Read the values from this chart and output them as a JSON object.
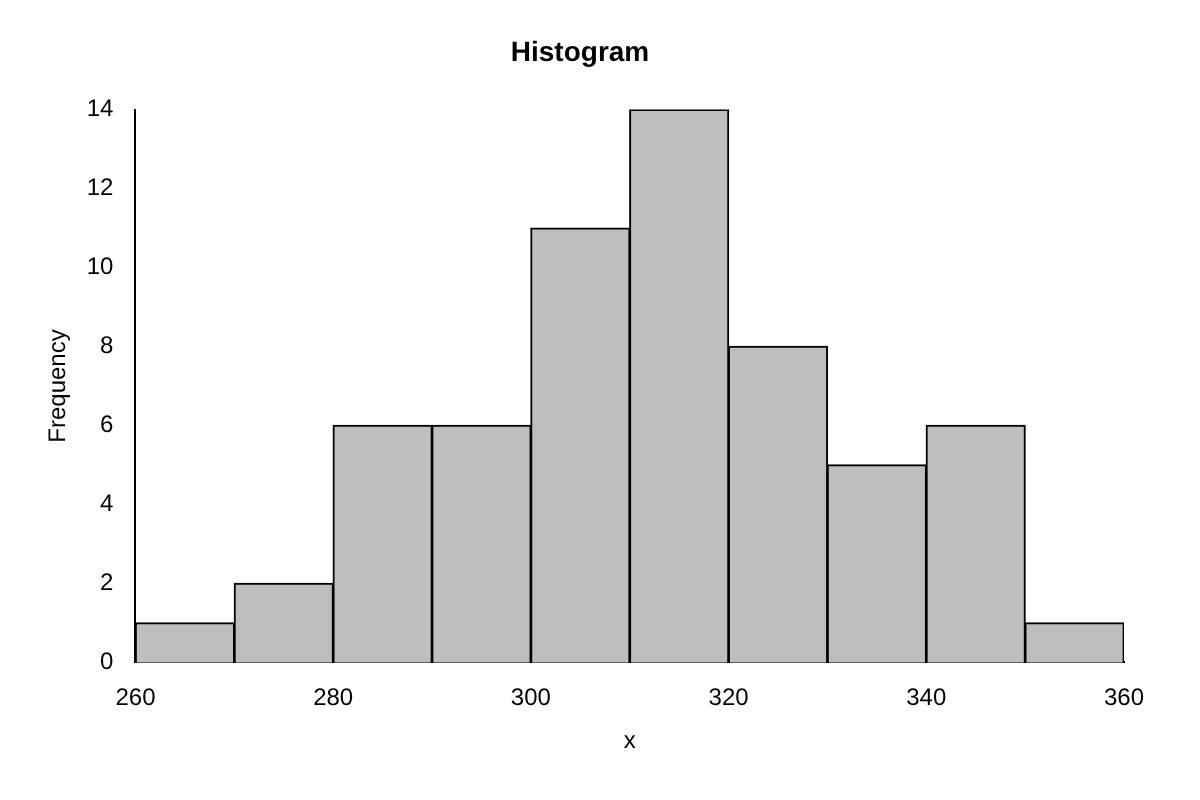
{
  "chart_data": {
    "type": "histogram",
    "title": "Histogram",
    "xlabel": "x",
    "ylabel": "Frequency",
    "bins": [
      260,
      270,
      280,
      290,
      300,
      310,
      320,
      330,
      340,
      350,
      360
    ],
    "values": [
      1,
      2,
      6,
      6,
      11,
      14,
      8,
      5,
      6,
      1
    ],
    "color": "#bebebe",
    "xlim": [
      260,
      360
    ],
    "xticks": [
      260,
      280,
      300,
      320,
      340,
      360
    ],
    "ylim": [
      0,
      14
    ],
    "yticks": [
      0,
      2,
      4,
      6,
      8,
      10,
      12,
      14
    ]
  }
}
